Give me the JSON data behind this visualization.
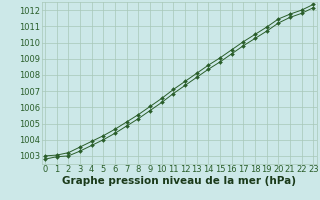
{
  "xlabel": "Graphe pression niveau de la mer (hPa)",
  "x": [
    0,
    1,
    2,
    3,
    4,
    5,
    6,
    7,
    8,
    9,
    10,
    11,
    12,
    13,
    14,
    15,
    16,
    17,
    18,
    19,
    20,
    21,
    22,
    23
  ],
  "y_upper": [
    1003.0,
    1003.05,
    1003.2,
    1003.55,
    1003.9,
    1004.25,
    1004.65,
    1005.1,
    1005.55,
    1006.05,
    1006.55,
    1007.1,
    1007.6,
    1008.1,
    1008.6,
    1009.05,
    1009.55,
    1010.05,
    1010.5,
    1010.95,
    1011.45,
    1011.75,
    1012.0,
    1012.35
  ],
  "y_lower": [
    1002.8,
    1002.95,
    1003.0,
    1003.3,
    1003.65,
    1004.0,
    1004.4,
    1004.85,
    1005.3,
    1005.8,
    1006.3,
    1006.85,
    1007.35,
    1007.85,
    1008.35,
    1008.8,
    1009.3,
    1009.8,
    1010.25,
    1010.7,
    1011.2,
    1011.55,
    1011.8,
    1012.15
  ],
  "ylim": [
    1002.5,
    1012.5
  ],
  "yticks": [
    1003,
    1004,
    1005,
    1006,
    1007,
    1008,
    1009,
    1010,
    1011,
    1012
  ],
  "xticks": [
    0,
    1,
    2,
    3,
    4,
    5,
    6,
    7,
    8,
    9,
    10,
    11,
    12,
    13,
    14,
    15,
    16,
    17,
    18,
    19,
    20,
    21,
    22,
    23
  ],
  "line_color": "#2a5e2a",
  "bg_color": "#cce8e8",
  "grid_color": "#a8c8b8",
  "tick_label_color": "#2a5e2a",
  "xlabel_color": "#1a3a1a",
  "xlabel_fontsize": 7.5,
  "tick_fontsize": 6.0,
  "xlabel_fontweight": "bold",
  "xlim": [
    -0.3,
    23.3
  ]
}
